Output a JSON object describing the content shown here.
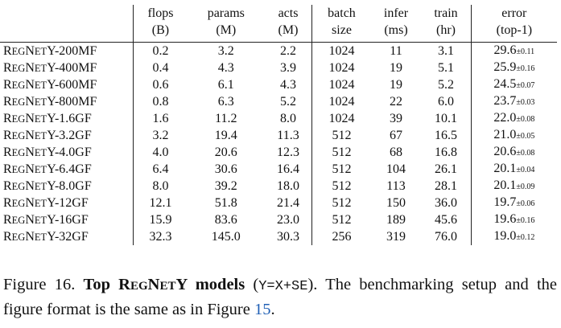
{
  "table": {
    "headers": [
      {
        "line1": "flops",
        "line2": "(B)"
      },
      {
        "line1": "params",
        "line2": "(M)"
      },
      {
        "line1": "acts",
        "line2": "(M)"
      },
      {
        "line1": "batch",
        "line2": "size"
      },
      {
        "line1": "infer",
        "line2": "(ms)"
      },
      {
        "line1": "train",
        "line2": "(hr)"
      },
      {
        "line1": "error",
        "line2": "(top-1)"
      }
    ],
    "rows": [
      {
        "name": {
          "a": "R",
          "b": "EG",
          "c": "N",
          "d": "ET",
          "e": "Y-200MF"
        },
        "flops": "0.2",
        "params": "3.2",
        "acts": "2.2",
        "batch": "1024",
        "infer": "11",
        "train": "3.1",
        "error": "29.6",
        "pm": "±0.11"
      },
      {
        "name": {
          "a": "R",
          "b": "EG",
          "c": "N",
          "d": "ET",
          "e": "Y-400MF"
        },
        "flops": "0.4",
        "params": "4.3",
        "acts": "3.9",
        "batch": "1024",
        "infer": "19",
        "train": "5.1",
        "error": "25.9",
        "pm": "±0.16"
      },
      {
        "name": {
          "a": "R",
          "b": "EG",
          "c": "N",
          "d": "ET",
          "e": "Y-600MF"
        },
        "flops": "0.6",
        "params": "6.1",
        "acts": "4.3",
        "batch": "1024",
        "infer": "19",
        "train": "5.2",
        "error": "24.5",
        "pm": "±0.07"
      },
      {
        "name": {
          "a": "R",
          "b": "EG",
          "c": "N",
          "d": "ET",
          "e": "Y-800MF"
        },
        "flops": "0.8",
        "params": "6.3",
        "acts": "5.2",
        "batch": "1024",
        "infer": "22",
        "train": "6.0",
        "error": "23.7",
        "pm": "±0.03"
      },
      {
        "name": {
          "a": "R",
          "b": "EG",
          "c": "N",
          "d": "ET",
          "e": "Y-1.6GF"
        },
        "flops": "1.6",
        "params": "11.2",
        "acts": "8.0",
        "batch": "1024",
        "infer": "39",
        "train": "10.1",
        "error": "22.0",
        "pm": "±0.08"
      },
      {
        "name": {
          "a": "R",
          "b": "EG",
          "c": "N",
          "d": "ET",
          "e": "Y-3.2GF"
        },
        "flops": "3.2",
        "params": "19.4",
        "acts": "11.3",
        "batch": "512",
        "infer": "67",
        "train": "16.5",
        "error": "21.0",
        "pm": "±0.05"
      },
      {
        "name": {
          "a": "R",
          "b": "EG",
          "c": "N",
          "d": "ET",
          "e": "Y-4.0GF"
        },
        "flops": "4.0",
        "params": "20.6",
        "acts": "12.3",
        "batch": "512",
        "infer": "68",
        "train": "16.8",
        "error": "20.6",
        "pm": "±0.08"
      },
      {
        "name": {
          "a": "R",
          "b": "EG",
          "c": "N",
          "d": "ET",
          "e": "Y-6.4GF"
        },
        "flops": "6.4",
        "params": "30.6",
        "acts": "16.4",
        "batch": "512",
        "infer": "104",
        "train": "26.1",
        "error": "20.1",
        "pm": "±0.04"
      },
      {
        "name": {
          "a": "R",
          "b": "EG",
          "c": "N",
          "d": "ET",
          "e": "Y-8.0GF"
        },
        "flops": "8.0",
        "params": "39.2",
        "acts": "18.0",
        "batch": "512",
        "infer": "113",
        "train": "28.1",
        "error": "20.1",
        "pm": "±0.09"
      },
      {
        "name": {
          "a": "R",
          "b": "EG",
          "c": "N",
          "d": "ET",
          "e": "Y-12GF"
        },
        "flops": "12.1",
        "params": "51.8",
        "acts": "21.4",
        "batch": "512",
        "infer": "150",
        "train": "36.0",
        "error": "19.7",
        "pm": "±0.06"
      },
      {
        "name": {
          "a": "R",
          "b": "EG",
          "c": "N",
          "d": "ET",
          "e": "Y-16GF"
        },
        "flops": "15.9",
        "params": "83.6",
        "acts": "23.0",
        "batch": "512",
        "infer": "189",
        "train": "45.6",
        "error": "19.6",
        "pm": "±0.16"
      },
      {
        "name": {
          "a": "R",
          "b": "EG",
          "c": "N",
          "d": "ET",
          "e": "Y-32GF"
        },
        "flops": "32.3",
        "params": "145.0",
        "acts": "30.3",
        "batch": "256",
        "infer": "319",
        "train": "76.0",
        "error": "19.0",
        "pm": "±0.12"
      }
    ]
  },
  "caption": {
    "lead": "Figure 16. ",
    "bold_a": "Top R",
    "bold_b": "EG",
    "bold_c": "N",
    "bold_d": "ET",
    "bold_e": "Y models",
    "paren_open": " (",
    "code": "Y=X+SE",
    "text": "). The benchmarking setup and the figure format is the same as in Figure ",
    "ref": "15",
    "end": "."
  }
}
